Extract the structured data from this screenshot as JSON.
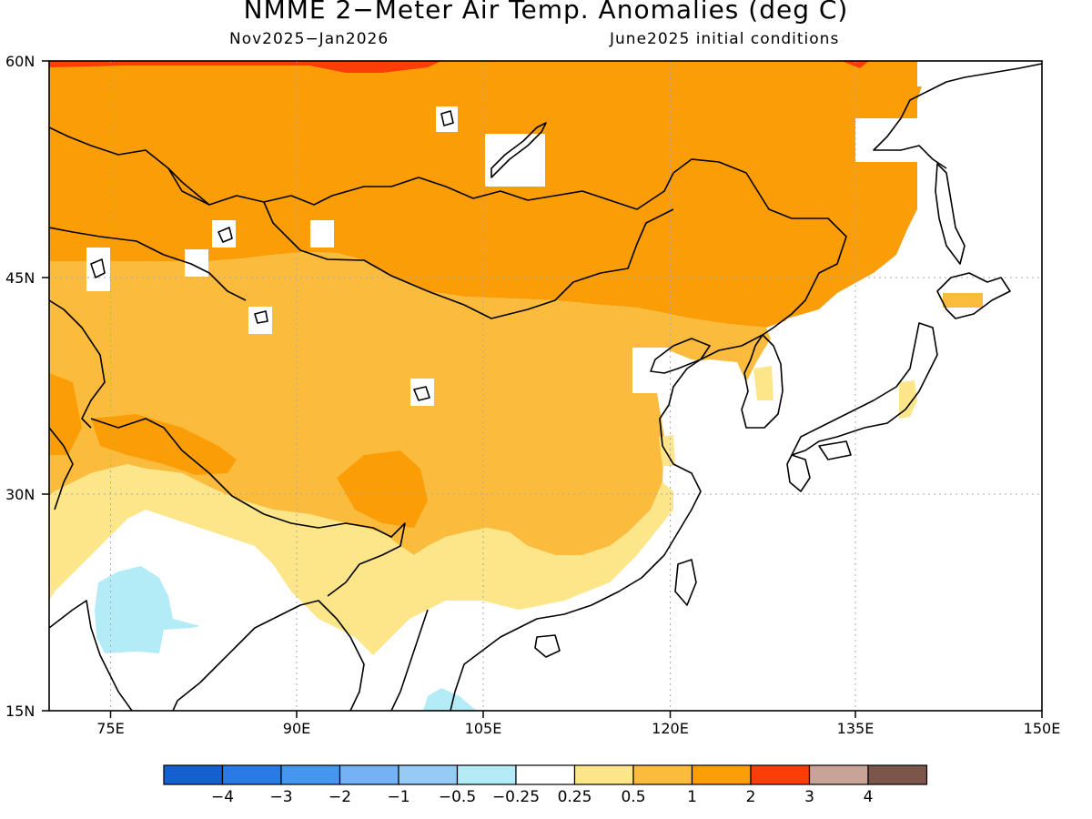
{
  "title": "NMME 2−Meter Air Temp. Anomalies (deg C)",
  "subtitle_left": "Nov2025−Jan2026",
  "subtitle_right": "June2025 initial conditions",
  "lat_ticks": [
    "60N",
    "45N",
    "30N",
    "15N"
  ],
  "lon_ticks": [
    "75E",
    "90E",
    "105E",
    "120E",
    "135E",
    "150E"
  ],
  "colorbar": {
    "colors": [
      "#1560cf",
      "#2a7ae6",
      "#4596ee",
      "#74b2f5",
      "#96cbf6",
      "#b3ecf6",
      "#ffffff",
      "#fde68a",
      "#fbbc3d",
      "#fb9d06",
      "#fb3d08",
      "#c8a397",
      "#7d564b"
    ],
    "labels": [
      "−4",
      "−3",
      "−2",
      "−1",
      "−0.5",
      "−0.25",
      "0.25",
      "0.5",
      "1",
      "2",
      "3",
      "4"
    ]
  },
  "colors": {
    "bin_0_25_0_5": "#fde68a",
    "bin_0_5_1": "#fbbc3d",
    "bin_1_2": "#fb9d06",
    "bin_2_3": "#fb3d08",
    "bin_neg_0_5_neg_0_25": "#b3ecf6",
    "coastline": "#000000",
    "grid": "#aaaaaa"
  }
}
